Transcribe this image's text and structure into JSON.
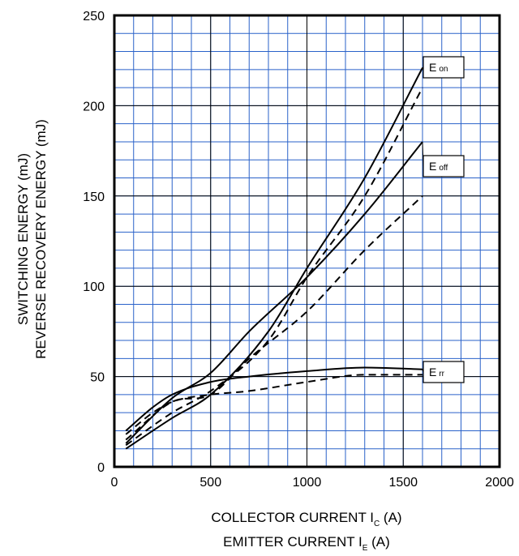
{
  "chart_data": {
    "type": "line",
    "xlabel": [
      "COLLECTOR CURRENT   I",
      "C",
      "   (A)",
      "EMITTER CURRENT   I",
      "E",
      "   (A)"
    ],
    "ylabel": [
      "SWITCHING ENERGY   (mJ)",
      "REVERSE RECOVERY ENERGY   (mJ)"
    ],
    "xlim": [
      0,
      2000
    ],
    "ylim": [
      0,
      250
    ],
    "x_ticks": [
      "0",
      "500",
      "1000",
      "1500",
      "2000"
    ],
    "y_ticks": [
      "0",
      "50",
      "100",
      "150",
      "200",
      "250"
    ],
    "grid": true,
    "colors": {
      "grid": "#2a62c9",
      "line": "#000000",
      "frame": "#000000"
    },
    "labels": [
      {
        "main": "E",
        "sub": "on",
        "series": "E_on"
      },
      {
        "main": "E",
        "sub": "off",
        "series": "E_off"
      },
      {
        "main": "E",
        "sub": "rr",
        "series": "E_rr"
      }
    ],
    "series": [
      {
        "style": "solid",
        "x": [
          60,
          300,
          500,
          800,
          1000,
          1300,
          1600
        ],
        "y": [
          10,
          27,
          40,
          75,
          110,
          160,
          221
        ]
      },
      {
        "style": "dashed",
        "x": [
          60,
          300,
          500,
          800,
          1000,
          1300,
          1600
        ],
        "y": [
          12,
          30,
          42,
          70,
          105,
          150,
          210
        ]
      },
      {
        "style": "solid",
        "x": [
          60,
          300,
          500,
          700,
          1000,
          1300,
          1600
        ],
        "y": [
          13,
          38,
          52,
          75,
          105,
          140,
          180
        ]
      },
      {
        "style": "dashed",
        "x": [
          60,
          300,
          500,
          700,
          1000,
          1300,
          1600
        ],
        "y": [
          15,
          36,
          40,
          60,
          86,
          120,
          150
        ]
      },
      {
        "style": "solid",
        "x": [
          60,
          200,
          300,
          500,
          700,
          1000,
          1300,
          1600
        ],
        "y": [
          20,
          33,
          40,
          47,
          50,
          53,
          55,
          54
        ]
      },
      {
        "style": "dashed",
        "x": [
          60,
          200,
          300,
          500,
          700,
          1000,
          1300,
          1600
        ],
        "y": [
          18,
          30,
          36,
          40,
          42,
          47,
          51,
          51
        ]
      }
    ]
  }
}
